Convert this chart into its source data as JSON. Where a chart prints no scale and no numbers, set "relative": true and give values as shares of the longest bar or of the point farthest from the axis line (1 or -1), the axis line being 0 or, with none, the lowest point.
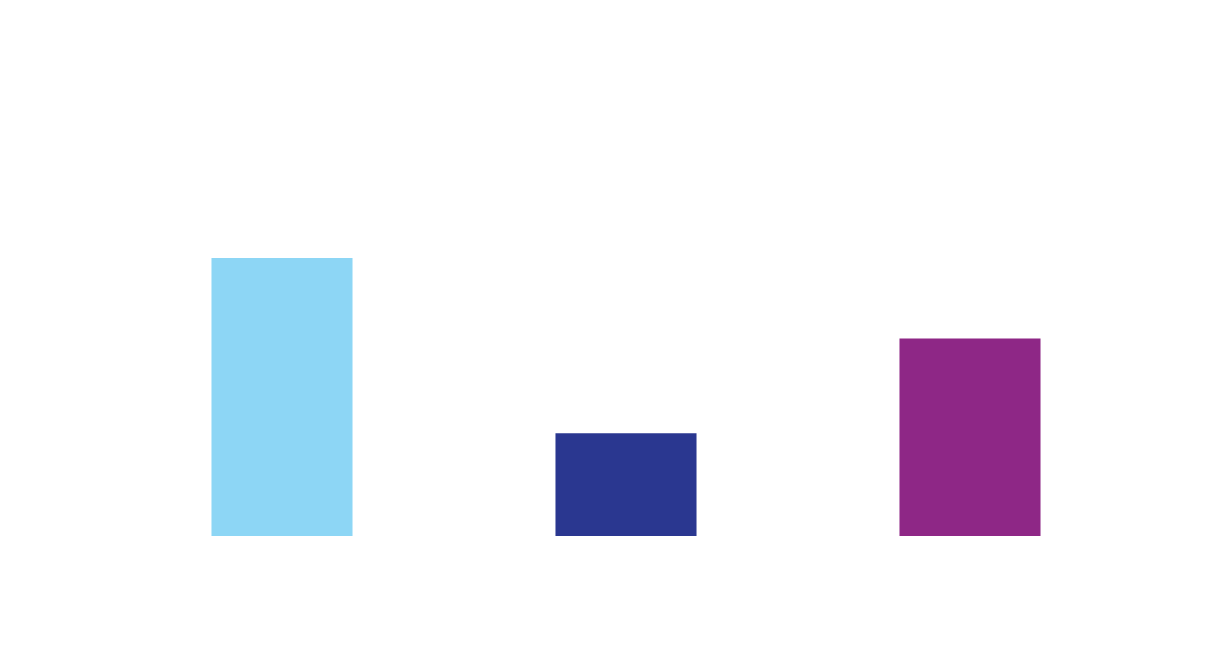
{
  "chart_data": {
    "type": "bar",
    "relative": true,
    "categories": [
      null,
      null,
      null
    ],
    "values": [
      1,
      0.37,
      0.71
    ],
    "colors": [
      "#8dd6f5",
      "#2a3790",
      "#8e2786"
    ]
  }
}
